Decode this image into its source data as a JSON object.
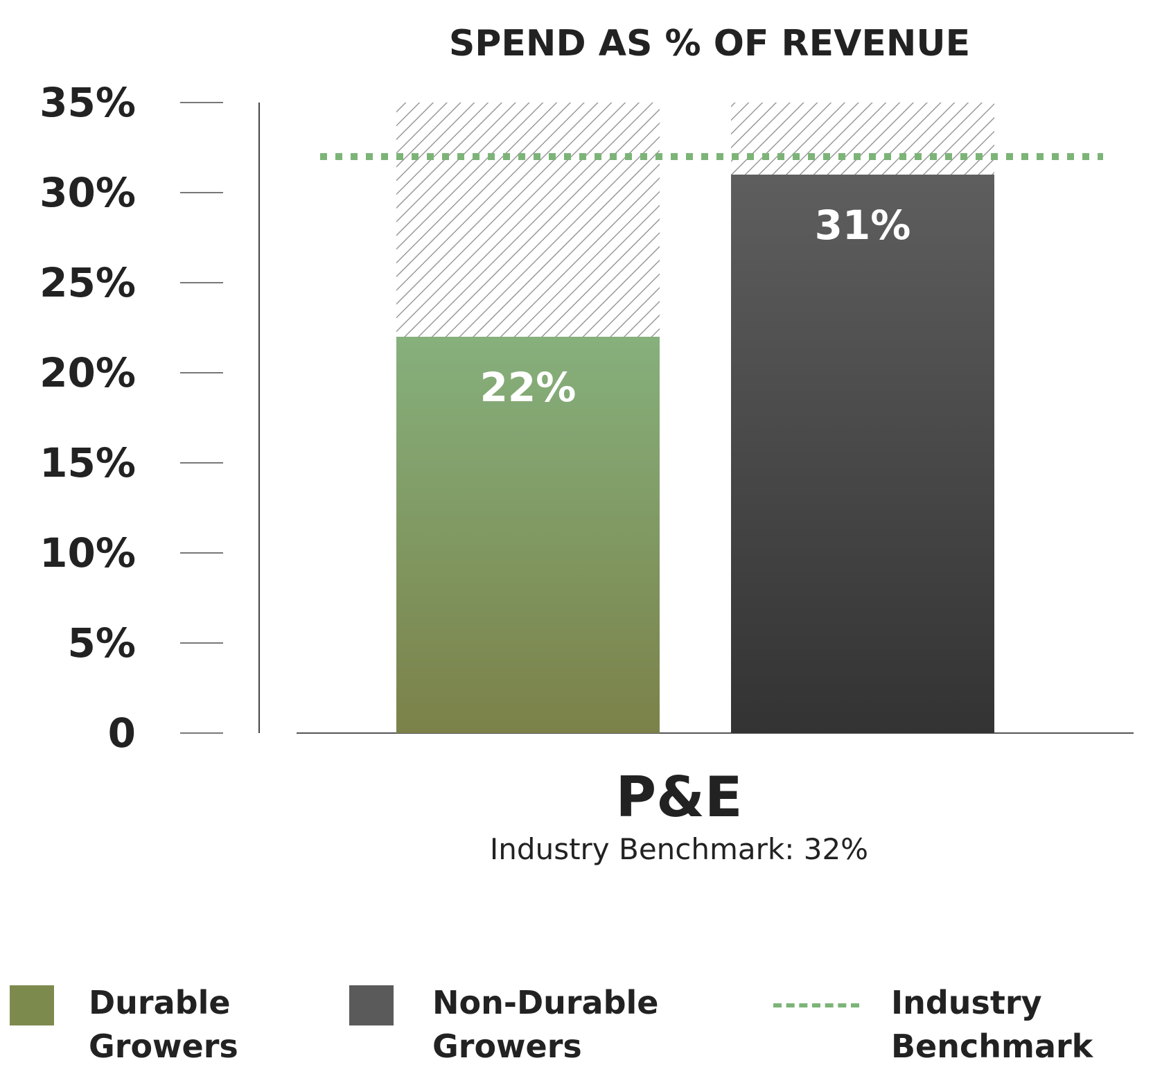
{
  "chart_data": {
    "type": "bar",
    "title": "SPEND AS % OF REVENUE",
    "category_label": "P&E",
    "subtitle": "Industry Benchmark: 32%",
    "categories": [
      "Durable Growers",
      "Non-Durable Growers"
    ],
    "values": [
      22,
      31
    ],
    "value_labels": [
      "22%",
      "31%"
    ],
    "ylim": [
      0,
      35
    ],
    "yticks": [
      0,
      5,
      10,
      15,
      20,
      25,
      30,
      35
    ],
    "ytick_labels": [
      "0",
      "5%",
      "10%",
      "15%",
      "20%",
      "25%",
      "30%",
      "35%"
    ],
    "benchmark": {
      "name": "Industry Benchmark",
      "value": 32
    },
    "grid": false,
    "legend_position": "bottom",
    "legend": [
      {
        "label": "Durable Growers",
        "kind": "swatch",
        "color": "#7d8a4e"
      },
      {
        "label": "Non-Durable Growers",
        "kind": "swatch",
        "color": "#5a5a5a"
      },
      {
        "label": "Industry Benchmark",
        "kind": "dashed-line",
        "color": "#7cb478"
      }
    ],
    "colors": {
      "durable_top": "#86b07c",
      "durable_bottom": "#7b8149",
      "nondurable_top": "#5e5e5e",
      "nondurable_bottom": "#333333",
      "benchmark": "#7cb478",
      "hatch": "#9a9a9a"
    }
  }
}
